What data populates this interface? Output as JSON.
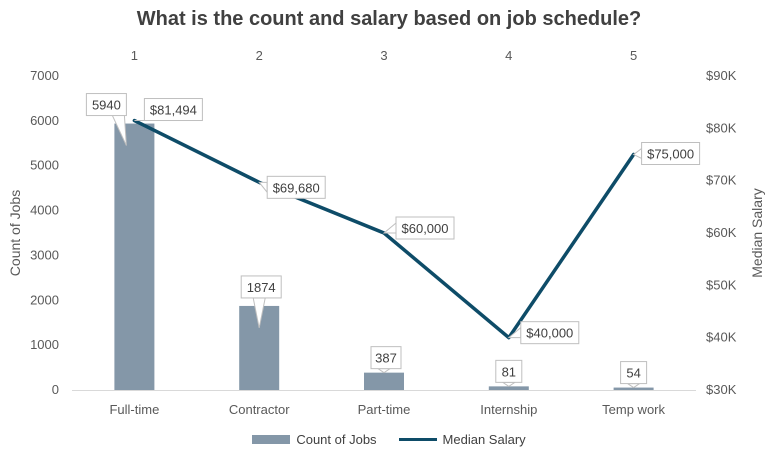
{
  "chart_data": {
    "type": "bar",
    "title": "What is the count and salary based on job schedule?",
    "categories": [
      "Full-time",
      "Contractor",
      "Part-time",
      "Internship",
      "Temp work"
    ],
    "top_labels": [
      "1",
      "2",
      "3",
      "4",
      "5"
    ],
    "series": [
      {
        "name": "Count of Jobs",
        "type": "bar",
        "axis": "left",
        "values": [
          5940,
          1874,
          387,
          81,
          54
        ],
        "labels": [
          "5940",
          "1874",
          "387",
          "81",
          "54"
        ],
        "color": "#8497A8"
      },
      {
        "name": "Median Salary",
        "type": "line",
        "axis": "right",
        "values": [
          81494,
          69680,
          60000,
          40000,
          75000
        ],
        "labels": [
          "$81,494",
          "$69,680",
          "$60,000",
          "$40,000",
          "$75,000"
        ],
        "color": "#0E4C68"
      }
    ],
    "ylabel_left": "Count of Jobs",
    "ylabel_right": "Median Salary",
    "ylim_left": [
      0,
      7000
    ],
    "yticks_left": [
      "0",
      "1000",
      "2000",
      "3000",
      "4000",
      "5000",
      "6000",
      "7000"
    ],
    "ylim_right": [
      30000,
      90000
    ],
    "yticks_right": [
      "$30K",
      "$40K",
      "$50K",
      "$60K",
      "$70K",
      "$80K",
      "$90K"
    ],
    "grid": false,
    "legend": "bottom"
  }
}
